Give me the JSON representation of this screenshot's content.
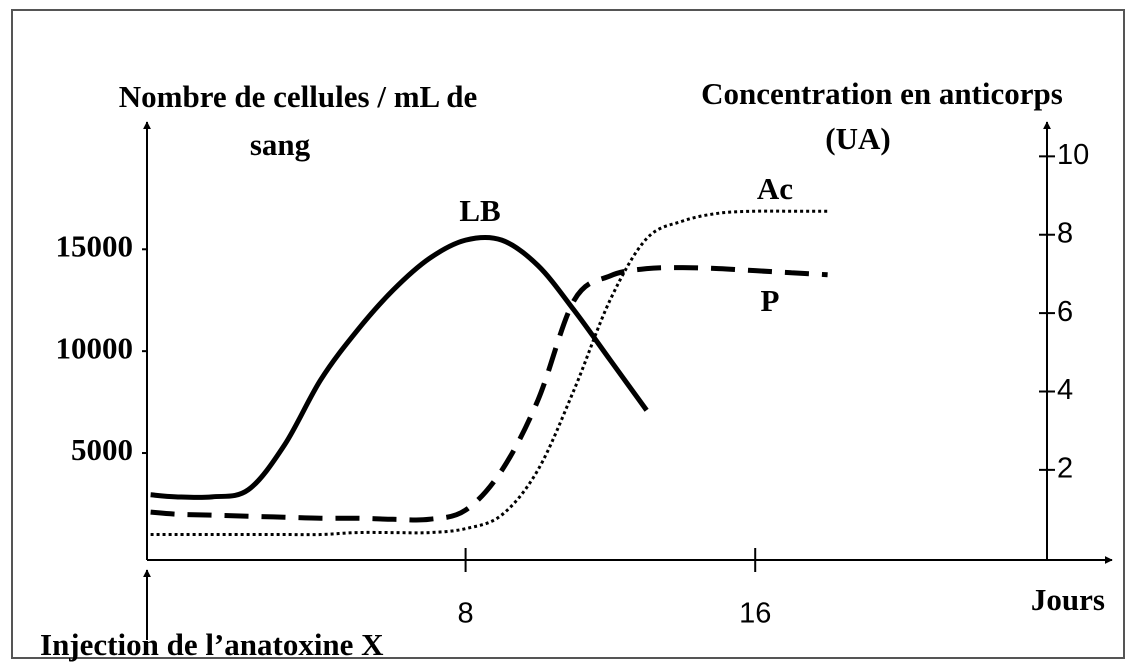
{
  "chart_data": {
    "type": "line",
    "ylabel": [
      "Nombre de cellules / mL de",
      "sang"
    ],
    "y2label": [
      "Concentration en anticorps",
      "(UA)"
    ],
    "xlabel": "Jours",
    "annotation": "Injection de l’anatoxine X",
    "x": [
      -0.7,
      0,
      1,
      2,
      3,
      4,
      5,
      6,
      7,
      8,
      9,
      10,
      11,
      12,
      13,
      14,
      15,
      16,
      17,
      18
    ],
    "series": [
      {
        "name": "LB",
        "color": "#000000",
        "style": "solid",
        "values": [
          2950,
          2850,
          2850,
          3200,
          5400,
          8600,
          11000,
          13000,
          14550,
          15450,
          15450,
          14200,
          12000,
          9550,
          7100,
          null,
          null,
          null,
          null,
          null
        ]
      },
      {
        "name": "P",
        "color": "#000000",
        "style": "dashed",
        "values": [
          2100,
          2000,
          1950,
          1900,
          1850,
          1800,
          1800,
          1750,
          1750,
          2200,
          4150,
          7600,
          12500,
          13700,
          14050,
          14100,
          14050,
          13950,
          13850,
          13750
        ]
      },
      {
        "name": "Ac",
        "color": "#000000",
        "style": "dotted",
        "axis": "y2",
        "values": [
          0.35,
          0.35,
          0.35,
          0.35,
          0.35,
          0.35,
          0.4,
          0.4,
          0.4,
          0.5,
          0.85,
          2.0,
          4.05,
          6.35,
          7.9,
          8.35,
          8.55,
          8.6,
          8.6,
          8.6
        ]
      }
    ],
    "xlim": [
      -0.8,
      25.8
    ],
    "xticks": [
      8,
      16
    ],
    "ylim": [
      -250,
      21100
    ],
    "yticks": [
      5000,
      10000,
      15000
    ],
    "y2lim": [
      -0.3,
      10.8
    ],
    "y2ticks": [
      2,
      4,
      6,
      8,
      10
    ],
    "grid": false
  }
}
